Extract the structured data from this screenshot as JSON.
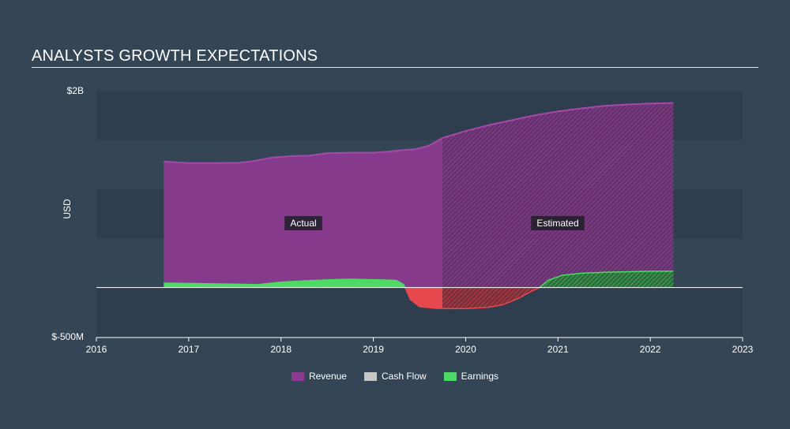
{
  "header": {
    "title": "ANALYSTS GROWTH EXPECTATIONS"
  },
  "chart_data": {
    "type": "area",
    "title": "ANALYSTS GROWTH EXPECTATIONS",
    "ylabel": "USD",
    "y_tick_labels": [
      {
        "value": 2000,
        "label": "$2B"
      },
      {
        "value": -500,
        "label": "$-500M"
      }
    ],
    "ylim": [
      -500,
      2000
    ],
    "xlim": [
      2016,
      2023
    ],
    "x_ticks": [
      2016,
      2017,
      2018,
      2019,
      2020,
      2021,
      2022,
      2023
    ],
    "estimate_start": 2019.75,
    "region_labels": {
      "actual": "Actual",
      "estimated": "Estimated"
    },
    "colors": {
      "background": "#344556",
      "band": "#2f3e4e",
      "revenue": "#8b3a8f",
      "earnings_positive": "#4cd964",
      "earnings_negative": "#e5484d",
      "cash_flow": "#c8c8c8"
    },
    "series": [
      {
        "name": "Revenue",
        "color": "#8b3a8f",
        "points": [
          [
            2016.73,
            1280
          ],
          [
            2017.0,
            1265
          ],
          [
            2017.25,
            1265
          ],
          [
            2017.55,
            1268
          ],
          [
            2017.7,
            1285
          ],
          [
            2017.9,
            1320
          ],
          [
            2018.1,
            1335
          ],
          [
            2018.3,
            1340
          ],
          [
            2018.5,
            1365
          ],
          [
            2018.75,
            1370
          ],
          [
            2019.0,
            1370
          ],
          [
            2019.15,
            1380
          ],
          [
            2019.3,
            1395
          ],
          [
            2019.45,
            1405
          ],
          [
            2019.6,
            1440
          ],
          [
            2019.75,
            1520
          ],
          [
            2020.0,
            1590
          ],
          [
            2020.25,
            1650
          ],
          [
            2020.5,
            1700
          ],
          [
            2020.75,
            1750
          ],
          [
            2021.0,
            1790
          ],
          [
            2021.25,
            1820
          ],
          [
            2021.5,
            1845
          ],
          [
            2021.75,
            1860
          ],
          [
            2022.0,
            1870
          ],
          [
            2022.25,
            1875
          ]
        ]
      },
      {
        "name": "Cash Flow",
        "color": "#c8c8c8",
        "points": []
      },
      {
        "name": "Earnings",
        "color": "#4cd964",
        "points": [
          [
            2016.73,
            45
          ],
          [
            2017.0,
            42
          ],
          [
            2017.25,
            38
          ],
          [
            2017.5,
            35
          ],
          [
            2017.75,
            30
          ],
          [
            2018.0,
            55
          ],
          [
            2018.25,
            68
          ],
          [
            2018.5,
            78
          ],
          [
            2018.75,
            85
          ],
          [
            2018.95,
            80
          ],
          [
            2019.1,
            78
          ],
          [
            2019.25,
            72
          ],
          [
            2019.33,
            30
          ],
          [
            2019.4,
            -120
          ],
          [
            2019.5,
            -195
          ],
          [
            2019.65,
            -210
          ],
          [
            2019.75,
            -213
          ],
          [
            2020.0,
            -215
          ],
          [
            2020.25,
            -200
          ],
          [
            2020.4,
            -175
          ],
          [
            2020.55,
            -120
          ],
          [
            2020.7,
            -45
          ],
          [
            2020.8,
            0
          ],
          [
            2020.9,
            75
          ],
          [
            2021.05,
            125
          ],
          [
            2021.25,
            145
          ],
          [
            2021.5,
            155
          ],
          [
            2021.75,
            160
          ],
          [
            2022.0,
            165
          ],
          [
            2022.25,
            165
          ]
        ]
      }
    ],
    "legend_position": "bottom-center",
    "grid": true
  },
  "legend": [
    {
      "label": "Revenue",
      "color": "#8b3a8f"
    },
    {
      "label": "Cash Flow",
      "color": "#c8c8c8"
    },
    {
      "label": "Earnings",
      "color": "#4cd964"
    }
  ]
}
